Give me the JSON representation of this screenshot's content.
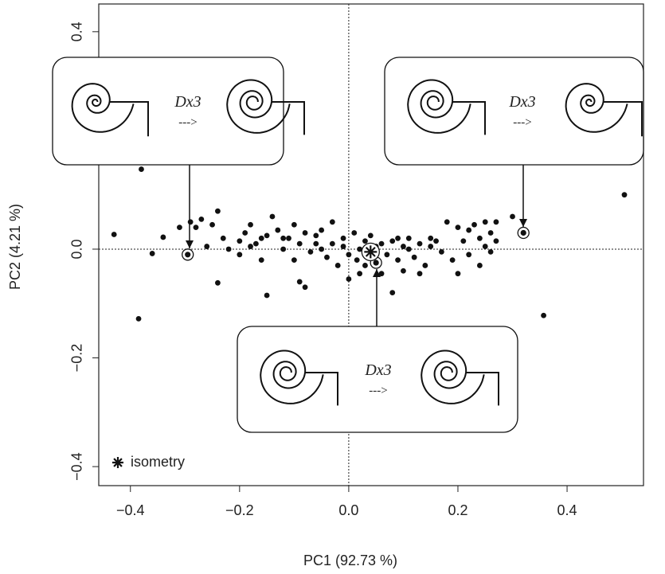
{
  "chart_data": {
    "type": "scatter",
    "x_label": "PC1 (92.73 %)",
    "y_label": "PC2 (4.21 %)",
    "xlim": [
      -0.458,
      0.54
    ],
    "ylim": [
      -0.435,
      0.451
    ],
    "xticks": [
      {
        "value": -0.4,
        "label": "−0.4"
      },
      {
        "value": -0.2,
        "label": "−0.2"
      },
      {
        "value": 0,
        "label": "0.0"
      },
      0.2,
      0.4
    ],
    "yticks": [
      {
        "value": -0.4,
        "label": "−0.4"
      },
      {
        "value": -0.2,
        "label": "−0.2"
      },
      {
        "value": 0,
        "label": "0.0"
      },
      0.4
    ],
    "hlines": [
      0
    ],
    "vlines": [
      0
    ],
    "series": [
      {
        "marker": "dot",
        "color": "#111",
        "x": [
          -0.43,
          -0.36,
          -0.34,
          -0.31,
          -0.29,
          -0.27,
          -0.25,
          -0.24,
          -0.23,
          -0.22,
          -0.24,
          -0.26,
          -0.2,
          -0.19,
          -0.18,
          -0.17,
          -0.16,
          -0.15,
          -0.14,
          -0.15,
          -0.13,
          -0.12,
          -0.11,
          -0.1,
          -0.1,
          -0.09,
          -0.08,
          -0.07,
          -0.06,
          -0.05,
          -0.04,
          -0.03,
          -0.02,
          -0.01,
          0.0,
          0.01,
          0.015,
          0.02,
          0.03,
          0.0,
          -0.12,
          -0.05,
          0.06,
          0.07,
          0.08,
          0.09,
          0.1,
          0.11,
          0.12,
          0.13,
          0.14,
          0.15,
          0.16,
          0.17,
          0.08,
          0.06,
          0.1,
          0.18,
          0.2,
          0.21,
          0.22,
          0.23,
          0.24,
          0.25,
          0.22,
          0.26,
          0.27,
          0.26,
          0.24,
          0.19,
          0.3,
          0.27,
          0.2,
          0.13,
          0.11,
          -0.09,
          -0.08,
          -0.16,
          -0.2,
          -0.28,
          -0.18,
          -0.06,
          0.04,
          0.09,
          0.15,
          -0.03,
          -0.38,
          -0.385,
          0.505,
          0.357,
          0.25,
          0.03,
          0.05,
          -0.01,
          0.02
        ],
        "y": [
          0.027,
          -0.008,
          0.022,
          0.04,
          0.05,
          0.055,
          0.045,
          0.07,
          0.02,
          0.0,
          -0.062,
          0.005,
          -0.01,
          0.03,
          0.045,
          0.01,
          -0.02,
          0.025,
          0.06,
          -0.085,
          0.035,
          0.0,
          0.02,
          0.045,
          -0.02,
          0.01,
          0.03,
          -0.005,
          0.025,
          0.0,
          -0.015,
          0.01,
          -0.03,
          0.005,
          -0.01,
          0.03,
          -0.02,
          0.0,
          0.015,
          -0.055,
          0.02,
          0.035,
          0.01,
          -0.01,
          0.015,
          -0.02,
          0.005,
          0.02,
          -0.015,
          0.01,
          -0.03,
          0.005,
          0.015,
          -0.005,
          -0.08,
          -0.045,
          -0.04,
          0.05,
          0.04,
          0.015,
          0.035,
          0.045,
          0.02,
          0.005,
          -0.01,
          0.03,
          0.05,
          -0.005,
          -0.03,
          -0.02,
          0.06,
          0.015,
          -0.045,
          -0.045,
          0.0,
          -0.06,
          -0.07,
          0.02,
          0.015,
          0.04,
          0.005,
          0.01,
          0.025,
          0.02,
          0.02,
          0.05,
          0.147,
          -0.128,
          0.1,
          -0.122,
          0.05,
          -0.03,
          0.005,
          0.02,
          -0.045
        ]
      },
      {
        "marker": "ringed",
        "color": "#111",
        "x": [
          -0.295,
          0.32,
          0.05
        ],
        "y": [
          -0.01,
          0.03,
          -0.025
        ]
      },
      {
        "name": "isometry",
        "marker": "asterisk",
        "color": "#111",
        "x": [
          0.04
        ],
        "y": [
          -0.005
        ]
      }
    ],
    "legend": "bottom-left",
    "insets": [
      {
        "label": "Dx3",
        "arrow": "--->"
      },
      {
        "label": "Dx3",
        "arrow": "--->"
      },
      {
        "label": "Dx3",
        "arrow": "--->"
      }
    ]
  }
}
